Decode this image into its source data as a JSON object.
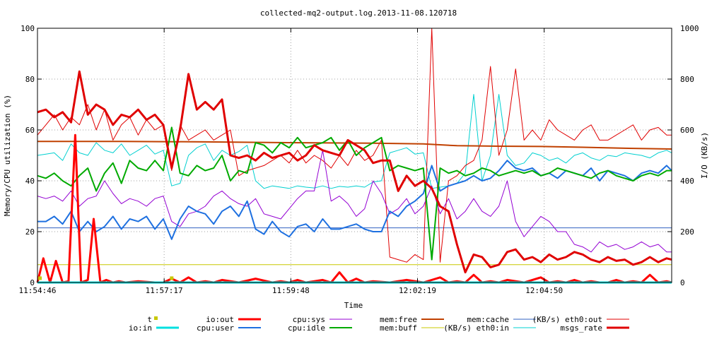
{
  "chart_data": {
    "type": "line",
    "title": "collected-mq2-output.log.2013-11-08.120718",
    "xlabel": "Time",
    "ylabel_left": "Memory/CPU utilization (%)",
    "ylabel_right": "I/O (KB/s)",
    "ylim_left": [
      0,
      100
    ],
    "ylim_right": [
      0,
      1000
    ],
    "yticks_left": [
      "0",
      "20",
      "40",
      "60",
      "80",
      "100"
    ],
    "yticks_right": [
      "0",
      "200",
      "400",
      "600",
      "800",
      "1000"
    ],
    "x_start_seconds": 0,
    "x_end_seconds": 756,
    "x_tick_seconds": [
      0,
      151,
      302,
      453,
      604
    ],
    "x_tick_labels": [
      "11:54:46",
      "11:57:17",
      "11:59:48",
      "12:02:19",
      "12:04:50"
    ],
    "grid": true,
    "legend_position": "bottom",
    "series": [
      {
        "name": "t",
        "axis": "left",
        "color": "#c8c800",
        "style": "point",
        "t": [
          3,
          160
        ],
        "values": [
          1,
          1
        ]
      },
      {
        "name": "io:in",
        "axis": "right",
        "color": "#00e0e0",
        "width": 3,
        "t": [
          0,
          756
        ],
        "values": [
          0,
          0
        ]
      },
      {
        "name": "io:out",
        "axis": "right",
        "color": "#ff0000",
        "width": 3,
        "t": [
          0,
          7,
          15,
          22,
          30,
          37,
          45,
          52,
          60,
          67,
          75,
          82,
          90,
          97,
          105,
          120,
          140,
          150,
          160,
          170,
          180,
          190,
          200,
          210,
          220,
          240,
          260,
          280,
          290,
          300,
          310,
          320,
          330,
          340,
          350,
          360,
          370,
          380,
          390,
          400,
          420,
          440,
          460,
          480,
          490,
          500,
          510,
          520,
          530,
          540,
          550,
          560,
          580,
          600,
          610,
          620,
          630,
          640,
          650,
          660,
          670,
          680,
          690,
          700,
          710,
          720,
          730,
          740,
          750,
          756
        ],
        "values": [
          0,
          95,
          0,
          85,
          0,
          5,
          580,
          0,
          10,
          250,
          0,
          10,
          0,
          5,
          0,
          5,
          0,
          0,
          15,
          0,
          20,
          0,
          5,
          0,
          10,
          0,
          15,
          0,
          5,
          0,
          10,
          0,
          5,
          10,
          0,
          40,
          0,
          15,
          0,
          5,
          0,
          10,
          0,
          20,
          0,
          5,
          0,
          30,
          0,
          5,
          0,
          10,
          0,
          20,
          0,
          5,
          0,
          10,
          0,
          5,
          0,
          0,
          10,
          0,
          5,
          0,
          30,
          0,
          5,
          0
        ]
      },
      {
        "name": "cpu:sys",
        "axis": "left",
        "color": "#9400d3",
        "width": 1,
        "t": [
          0,
          10,
          20,
          30,
          40,
          50,
          60,
          70,
          80,
          90,
          100,
          110,
          120,
          130,
          140,
          150,
          160,
          170,
          180,
          190,
          200,
          210,
          220,
          230,
          240,
          250,
          260,
          270,
          280,
          290,
          300,
          310,
          320,
          330,
          340,
          350,
          360,
          370,
          380,
          390,
          400,
          410,
          420,
          430,
          440,
          450,
          460,
          470,
          480,
          490,
          500,
          510,
          520,
          530,
          540,
          550,
          560,
          570,
          580,
          590,
          600,
          610,
          620,
          630,
          640,
          650,
          660,
          670,
          680,
          690,
          700,
          710,
          720,
          730,
          740,
          750,
          756
        ],
        "values": [
          34,
          33,
          34,
          32,
          36,
          30,
          33,
          34,
          40,
          35,
          31,
          33,
          32,
          30,
          33,
          34,
          24,
          22,
          27,
          28,
          30,
          34,
          36,
          33,
          31,
          30,
          33,
          27,
          26,
          25,
          29,
          33,
          36,
          36,
          52,
          32,
          34,
          31,
          26,
          29,
          40,
          35,
          27,
          29,
          33,
          27,
          30,
          38,
          27,
          33,
          25,
          28,
          33,
          28,
          26,
          30,
          40,
          24,
          18,
          22,
          26,
          24,
          20,
          20,
          15,
          14,
          12,
          16,
          14,
          15,
          13,
          14,
          16,
          14,
          15,
          12,
          12
        ]
      },
      {
        "name": "cpu:user",
        "axis": "left",
        "color": "#1e70e0",
        "width": 2,
        "t": [
          0,
          10,
          20,
          30,
          40,
          50,
          60,
          70,
          80,
          90,
          100,
          110,
          120,
          130,
          140,
          150,
          160,
          170,
          180,
          190,
          200,
          210,
          220,
          230,
          240,
          250,
          260,
          270,
          280,
          290,
          300,
          310,
          320,
          330,
          340,
          350,
          360,
          370,
          380,
          390,
          400,
          410,
          420,
          430,
          440,
          450,
          460,
          470,
          480,
          490,
          500,
          510,
          520,
          530,
          540,
          550,
          560,
          570,
          580,
          590,
          600,
          610,
          620,
          630,
          640,
          650,
          660,
          670,
          680,
          690,
          700,
          710,
          720,
          730,
          740,
          750,
          756
        ],
        "values": [
          24,
          24,
          26,
          23,
          28,
          20,
          24,
          20,
          22,
          26,
          21,
          25,
          24,
          26,
          21,
          25,
          17,
          25,
          30,
          28,
          27,
          23,
          28,
          30,
          26,
          32,
          21,
          19,
          24,
          20,
          18,
          22,
          23,
          20,
          25,
          21,
          21,
          22,
          23,
          21,
          20,
          20,
          28,
          26,
          30,
          32,
          35,
          46,
          36,
          38,
          39,
          40,
          42,
          40,
          41,
          44,
          48,
          45,
          44,
          45,
          42,
          43,
          41,
          44,
          43,
          42,
          45,
          40,
          44,
          43,
          42,
          40,
          43,
          44,
          43,
          46,
          44
        ]
      },
      {
        "name": "cpu:idle",
        "axis": "left",
        "color": "#00aa00",
        "width": 2,
        "t": [
          0,
          10,
          20,
          30,
          40,
          50,
          60,
          70,
          80,
          90,
          100,
          110,
          120,
          130,
          140,
          150,
          160,
          170,
          180,
          190,
          200,
          210,
          220,
          230,
          240,
          250,
          260,
          270,
          280,
          290,
          300,
          310,
          320,
          330,
          340,
          350,
          360,
          370,
          380,
          390,
          400,
          410,
          420,
          430,
          440,
          450,
          460,
          470,
          480,
          490,
          500,
          510,
          520,
          530,
          540,
          550,
          560,
          570,
          580,
          590,
          600,
          610,
          620,
          630,
          640,
          650,
          660,
          670,
          680,
          690,
          700,
          710,
          720,
          730,
          740,
          750,
          756
        ],
        "values": [
          42,
          41,
          43,
          40,
          38,
          42,
          45,
          36,
          43,
          47,
          39,
          48,
          45,
          44,
          48,
          44,
          61,
          43,
          42,
          46,
          44,
          45,
          50,
          40,
          44,
          43,
          55,
          54,
          51,
          55,
          53,
          57,
          53,
          54,
          55,
          57,
          52,
          56,
          50,
          53,
          55,
          57,
          44,
          46,
          45,
          44,
          45,
          9,
          45,
          43,
          44,
          42,
          43,
          45,
          44,
          42,
          43,
          44,
          43,
          44,
          42,
          43,
          45,
          44,
          43,
          42,
          41,
          43,
          44,
          42,
          41,
          40,
          42,
          43,
          42,
          44,
          44
        ]
      },
      {
        "name": "mem:free",
        "axis": "left",
        "color": "#c04000",
        "width": 2,
        "t": [
          0,
          100,
          200,
          300,
          400,
          460,
          500,
          550,
          600,
          650,
          700,
          756
        ],
        "values": [
          55.5,
          55.5,
          55.3,
          55,
          54.8,
          54.5,
          53.8,
          53.6,
          53.5,
          53.2,
          52.8,
          52.5
        ]
      },
      {
        "name": "mem:buff",
        "axis": "left",
        "color": "#c8c800",
        "width": 1,
        "t": [
          0,
          756
        ],
        "values": [
          7,
          7
        ]
      },
      {
        "name": "mem:cache",
        "axis": "left",
        "color": "#3060c0",
        "width": 1,
        "t": [
          0,
          756
        ],
        "values": [
          21.5,
          21.5
        ]
      },
      {
        "name": "(KB/s) eth0:in",
        "axis": "right",
        "color": "#00d0d0",
        "width": 1,
        "t": [
          0,
          10,
          20,
          30,
          40,
          50,
          60,
          70,
          80,
          90,
          100,
          110,
          120,
          130,
          140,
          150,
          160,
          170,
          180,
          190,
          200,
          210,
          220,
          230,
          240,
          250,
          260,
          270,
          280,
          290,
          300,
          310,
          320,
          330,
          340,
          350,
          360,
          370,
          380,
          390,
          400,
          410,
          420,
          430,
          440,
          450,
          460,
          470,
          480,
          490,
          500,
          510,
          520,
          530,
          540,
          550,
          560,
          570,
          580,
          590,
          600,
          610,
          620,
          630,
          640,
          650,
          660,
          670,
          680,
          690,
          700,
          710,
          720,
          730,
          740,
          750,
          756
        ],
        "values": [
          500,
          505,
          510,
          480,
          545,
          510,
          500,
          550,
          520,
          510,
          545,
          500,
          520,
          540,
          505,
          520,
          380,
          390,
          500,
          530,
          545,
          480,
          520,
          500,
          515,
          540,
          400,
          370,
          380,
          375,
          370,
          380,
          375,
          372,
          380,
          370,
          378,
          375,
          380,
          375,
          395,
          400,
          510,
          520,
          530,
          505,
          510,
          370,
          375,
          380,
          390,
          430,
          740,
          400,
          500,
          740,
          500,
          460,
          470,
          510,
          500,
          480,
          490,
          470,
          500,
          510,
          490,
          480,
          500,
          495,
          510,
          505,
          500,
          490,
          510,
          520,
          510
        ]
      },
      {
        "name": "(KB/s) eth0:out",
        "axis": "right",
        "color": "#e00000",
        "width": 1,
        "t": [
          0,
          10,
          20,
          30,
          40,
          50,
          60,
          70,
          80,
          90,
          100,
          110,
          120,
          130,
          140,
          150,
          160,
          170,
          180,
          190,
          200,
          210,
          220,
          230,
          240,
          250,
          260,
          270,
          280,
          290,
          300,
          310,
          320,
          330,
          340,
          350,
          360,
          370,
          380,
          390,
          400,
          410,
          420,
          430,
          440,
          450,
          460,
          470,
          480,
          490,
          500,
          510,
          520,
          530,
          540,
          550,
          560,
          570,
          580,
          590,
          600,
          610,
          620,
          630,
          640,
          650,
          660,
          670,
          680,
          690,
          700,
          710,
          720,
          730,
          740,
          750,
          756
        ],
        "values": [
          580,
          620,
          660,
          600,
          650,
          620,
          700,
          600,
          680,
          560,
          620,
          650,
          580,
          640,
          600,
          620,
          440,
          620,
          560,
          580,
          600,
          560,
          580,
          600,
          420,
          440,
          450,
          460,
          480,
          500,
          470,
          520,
          470,
          500,
          480,
          450,
          500,
          460,
          520,
          480,
          500,
          560,
          100,
          90,
          80,
          110,
          90,
          1000,
          80,
          400,
          420,
          460,
          480,
          560,
          850,
          500,
          600,
          840,
          560,
          600,
          560,
          640,
          600,
          580,
          560,
          600,
          620,
          560,
          560,
          580,
          600,
          620,
          560,
          600,
          610,
          580,
          580
        ]
      },
      {
        "name": "msgs_rate",
        "axis": "right",
        "color": "#e00000",
        "width": 3,
        "t": [
          0,
          10,
          20,
          30,
          40,
          50,
          60,
          70,
          80,
          90,
          100,
          110,
          120,
          130,
          140,
          150,
          160,
          170,
          180,
          190,
          200,
          210,
          220,
          230,
          240,
          250,
          260,
          270,
          280,
          290,
          300,
          310,
          320,
          330,
          340,
          350,
          360,
          370,
          380,
          390,
          400,
          410,
          420,
          430,
          440,
          450,
          460,
          470,
          480,
          490,
          500,
          510,
          520,
          530,
          540,
          550,
          560,
          570,
          580,
          590,
          600,
          610,
          620,
          630,
          640,
          650,
          660,
          670,
          680,
          690,
          700,
          710,
          720,
          730,
          740,
          750,
          756
        ],
        "values": [
          670,
          680,
          650,
          670,
          630,
          830,
          660,
          700,
          680,
          620,
          660,
          650,
          680,
          640,
          660,
          620,
          450,
          600,
          820,
          680,
          710,
          680,
          720,
          500,
          490,
          500,
          480,
          510,
          490,
          500,
          510,
          480,
          500,
          540,
          520,
          510,
          500,
          560,
          540,
          520,
          470,
          480,
          480,
          360,
          420,
          380,
          400,
          370,
          300,
          280,
          150,
          40,
          110,
          100,
          60,
          70,
          120,
          130,
          90,
          100,
          80,
          110,
          90,
          100,
          120,
          110,
          90,
          80,
          100,
          85,
          90,
          70,
          80,
          100,
          80,
          95,
          90
        ]
      }
    ]
  }
}
